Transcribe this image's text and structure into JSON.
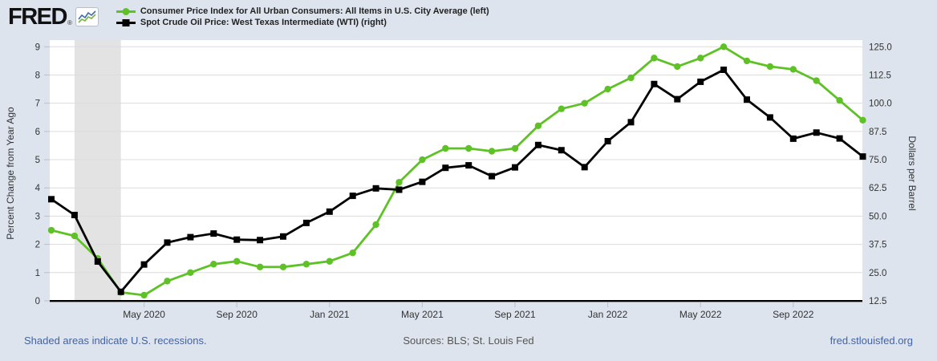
{
  "brand": {
    "logo_text": "FRED",
    "registered_mark": "®"
  },
  "legend": [
    {
      "label": "Consumer Price Index for All Urban Consumers: All Items in U.S. City Average (left)",
      "marker": "circle",
      "color": "#5ec226"
    },
    {
      "label": "Spot Crude Oil Price: West Texas Intermediate (WTI) (right)",
      "marker": "square",
      "color": "#000000"
    }
  ],
  "footer": {
    "recession_note": "Shaded areas indicate U.S. recessions.",
    "sources": "Sources: BLS; St. Louis Fed",
    "site_link": "fred.stlouisfed.org"
  },
  "colors": {
    "page_bg": "#dde4ee",
    "plot_bg": "#ffffff",
    "gridline": "#dcdcdc",
    "recession_band": "#e3e3e3",
    "axis_line": "#000000",
    "tick_mark": "#b9c0ce",
    "tick_text": "#333333",
    "cpi_green": "#5ec226",
    "wti_black": "#000000",
    "link_blue": "#44639f"
  },
  "chart_data": {
    "type": "line",
    "title": "",
    "grid": "horizontal",
    "legend_position": "top-left",
    "x": [
      "2020-01",
      "2020-02",
      "2020-03",
      "2020-04",
      "2020-05",
      "2020-06",
      "2020-07",
      "2020-08",
      "2020-09",
      "2020-10",
      "2020-11",
      "2020-12",
      "2021-01",
      "2021-02",
      "2021-03",
      "2021-04",
      "2021-05",
      "2021-06",
      "2021-07",
      "2021-08",
      "2021-09",
      "2021-10",
      "2021-11",
      "2021-12",
      "2022-01",
      "2022-02",
      "2022-03",
      "2022-04",
      "2022-05",
      "2022-06",
      "2022-07",
      "2022-08",
      "2022-09",
      "2022-10",
      "2022-11",
      "2022-12"
    ],
    "series": [
      {
        "name": "Consumer Price Index for All Urban Consumers: All Items in U.S. City Average",
        "axis": "left",
        "unit": "Percent Change from Year Ago",
        "color": "#5ec226",
        "marker": "circle",
        "values": [
          2.5,
          2.3,
          1.5,
          0.3,
          0.2,
          0.7,
          1.0,
          1.3,
          1.4,
          1.2,
          1.2,
          1.3,
          1.4,
          1.7,
          2.7,
          4.2,
          5.0,
          5.4,
          5.4,
          5.3,
          5.4,
          6.2,
          6.8,
          7.0,
          7.5,
          7.9,
          8.6,
          8.3,
          8.6,
          9.0,
          8.5,
          8.3,
          8.2,
          7.8,
          7.1,
          6.4
        ]
      },
      {
        "name": "Spot Crude Oil Price: West Texas Intermediate (WTI)",
        "axis": "right",
        "unit": "Dollars per Barrel",
        "color": "#000000",
        "marker": "square",
        "values": [
          57.5,
          50.5,
          29.9,
          16.5,
          28.6,
          38.3,
          40.7,
          42.3,
          39.6,
          39.4,
          41.0,
          47.0,
          52.0,
          59.0,
          62.3,
          61.7,
          65.2,
          71.4,
          72.5,
          67.7,
          71.6,
          81.5,
          79.2,
          71.7,
          83.2,
          91.6,
          108.5,
          101.8,
          109.5,
          114.8,
          101.6,
          93.7,
          84.3,
          87.0,
          84.4,
          76.4
        ]
      }
    ],
    "left_axis": {
      "title": "Percent Change from Year Ago",
      "min": 0,
      "max": 9,
      "ticks": [
        0,
        1,
        2,
        3,
        4,
        5,
        6,
        7,
        8,
        9
      ],
      "tick_labels": [
        "0",
        "1",
        "2",
        "3",
        "4",
        "5",
        "6",
        "7",
        "8",
        "9"
      ]
    },
    "right_axis": {
      "title": "Dollars per Barrel",
      "min": 12.5,
      "max": 125.0,
      "ticks": [
        12.5,
        25.0,
        37.5,
        50.0,
        62.5,
        75.0,
        87.5,
        100.0,
        112.5,
        125.0
      ],
      "tick_labels": [
        "12.5",
        "25.0",
        "37.5",
        "50.0",
        "62.5",
        "75.0",
        "87.5",
        "100.0",
        "112.5",
        "125.0"
      ]
    },
    "x_ticks": [
      {
        "index": 4,
        "label": "May 2020"
      },
      {
        "index": 8,
        "label": "Sep 2020"
      },
      {
        "index": 12,
        "label": "Jan 2021"
      },
      {
        "index": 16,
        "label": "May 2021"
      },
      {
        "index": 20,
        "label": "Sep 2021"
      },
      {
        "index": 24,
        "label": "Jan 2022"
      },
      {
        "index": 28,
        "label": "May 2022"
      },
      {
        "index": 32,
        "label": "Sep 2022"
      }
    ],
    "recession_bands": [
      {
        "start_index": 1,
        "end_index": 3
      }
    ]
  }
}
